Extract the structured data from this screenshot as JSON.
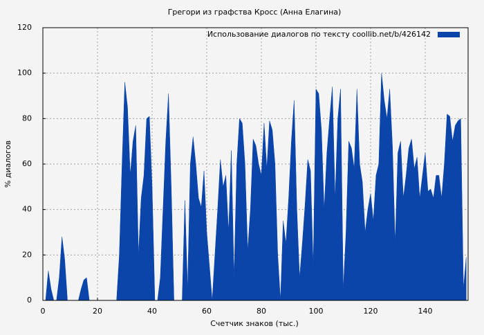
{
  "chart_data": {
    "type": "area",
    "title": "Грегори из графства Кросс (Анна Елагина)",
    "x_label": "Счетчик знаков (тыс.)",
    "y_label": "% диалогов",
    "x": [
      0,
      1,
      2,
      3,
      4,
      5,
      6,
      7,
      8,
      9,
      10,
      11,
      12,
      13,
      14,
      15,
      16,
      17,
      18,
      19,
      20,
      21,
      22,
      23,
      24,
      25,
      26,
      27,
      28,
      29,
      30,
      31,
      32,
      33,
      34,
      35,
      36,
      37,
      38,
      39,
      40,
      41,
      42,
      43,
      44,
      45,
      46,
      47,
      48,
      49,
      50,
      51,
      52,
      53,
      54,
      55,
      56,
      57,
      58,
      59,
      60,
      61,
      62,
      63,
      64,
      65,
      66,
      67,
      68,
      69,
      70,
      71,
      72,
      73,
      74,
      75,
      76,
      77,
      78,
      79,
      80,
      81,
      82,
      83,
      84,
      85,
      86,
      87,
      88,
      89,
      90,
      91,
      92,
      93,
      94,
      95,
      96,
      97,
      98,
      99,
      100,
      101,
      102,
      103,
      104,
      105,
      106,
      107,
      108,
      109,
      110,
      111,
      112,
      113,
      114,
      115,
      116,
      117,
      118,
      119,
      120,
      121,
      122,
      123,
      124,
      125,
      126,
      127,
      128,
      129,
      130,
      131,
      132,
      133,
      134,
      135,
      136,
      137,
      138,
      139,
      140,
      141,
      142,
      143,
      144,
      145,
      146,
      147,
      148,
      149,
      150,
      151,
      152,
      153,
      154,
      155
    ],
    "series": [
      {
        "name": "Использование диалогов по тексту  coollib.net/b/426142",
        "color": "#0b45a9",
        "values": [
          0,
          0,
          13,
          5,
          0,
          0,
          10,
          28,
          18,
          0,
          0,
          0,
          0,
          0,
          5,
          9,
          10,
          0,
          0,
          0,
          0,
          0,
          0,
          0,
          0,
          0,
          0,
          0,
          20,
          60,
          96,
          85,
          55,
          70,
          77,
          20,
          45,
          55,
          80,
          81,
          50,
          0,
          0,
          10,
          40,
          70,
          91,
          50,
          0,
          0,
          0,
          0,
          44,
          5,
          60,
          72,
          60,
          45,
          41,
          57,
          30,
          15,
          0,
          20,
          40,
          62,
          50,
          55,
          30,
          66,
          10,
          60,
          80,
          78,
          60,
          22,
          40,
          71,
          68,
          60,
          55,
          78,
          58,
          79,
          75,
          60,
          20,
          0,
          35,
          25,
          45,
          70,
          88,
          40,
          10,
          25,
          42,
          62,
          57,
          15,
          93,
          91,
          75,
          40,
          65,
          80,
          94,
          45,
          80,
          93,
          5,
          30,
          70,
          67,
          58,
          93,
          60,
          52,
          30,
          40,
          47,
          35,
          55,
          60,
          100,
          88,
          80,
          93,
          68,
          25,
          65,
          70,
          45,
          55,
          67,
          71,
          58,
          63,
          45,
          55,
          65,
          48,
          49,
          45,
          55,
          55,
          45,
          60,
          82,
          81,
          70,
          77,
          79,
          80,
          5,
          19
        ]
      }
    ],
    "xlim": [
      0,
      155.7
    ],
    "ylim": [
      0,
      120
    ],
    "xticks": [
      0,
      20,
      40,
      60,
      80,
      100,
      120,
      140
    ],
    "yticks": [
      0,
      20,
      40,
      60,
      80,
      100,
      120
    ],
    "grid": true,
    "legend": "top-right"
  }
}
